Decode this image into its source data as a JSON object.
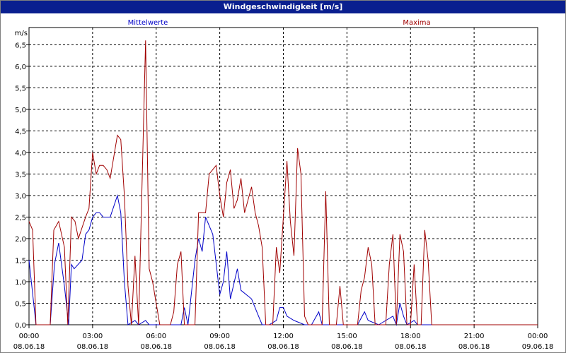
{
  "window": {
    "title": "Windgeschwindigkeit [m/s]"
  },
  "chart_data": {
    "type": "line",
    "title": "Windgeschwindigkeit [m/s]",
    "ylabel": "m/s",
    "ylim": [
      0,
      6.9
    ],
    "grid": true,
    "yticks": [
      "0,0",
      "0,5",
      "1,0",
      "1,5",
      "2,0",
      "2,5",
      "3,0",
      "3,5",
      "4,0",
      "4,5",
      "5,0",
      "5,5",
      "6,0",
      "6,5"
    ],
    "xticks": [
      {
        "time": "00:00",
        "date": "08.06.18"
      },
      {
        "time": "03:00",
        "date": "08.06.18"
      },
      {
        "time": "06:00",
        "date": "08.06.18"
      },
      {
        "time": "09:00",
        "date": "08.06.18"
      },
      {
        "time": "12:00",
        "date": "08.06.18"
      },
      {
        "time": "15:00",
        "date": "08.06.18"
      },
      {
        "time": "18:00",
        "date": "08.06.18"
      },
      {
        "time": "21:00",
        "date": "08.06.18"
      },
      {
        "time": "00:00",
        "date": "09.06.18"
      }
    ],
    "x_unit": "hours since 08.06.18 00:00",
    "series": [
      {
        "name": "Mittelwerte",
        "color": "#0000c8",
        "points": [
          [
            0,
            1.5
          ],
          [
            0.33,
            0
          ],
          [
            1,
            0
          ],
          [
            1.2,
            1.4
          ],
          [
            1.4,
            1.9
          ],
          [
            1.67,
            0.9
          ],
          [
            1.87,
            0
          ],
          [
            2,
            1.4
          ],
          [
            2.13,
            1.3
          ],
          [
            2.5,
            1.5
          ],
          [
            2.67,
            2.1
          ],
          [
            2.83,
            2.2
          ],
          [
            3,
            2.5
          ],
          [
            3.17,
            2.6
          ],
          [
            3.33,
            2.6
          ],
          [
            3.5,
            2.5
          ],
          [
            3.83,
            2.5
          ],
          [
            4.17,
            3.0
          ],
          [
            4.33,
            2.6
          ],
          [
            4.5,
            1.0
          ],
          [
            4.67,
            0
          ],
          [
            5,
            0.1
          ],
          [
            5.17,
            0
          ],
          [
            5.5,
            0.1
          ],
          [
            5.67,
            0
          ],
          [
            7.17,
            0
          ],
          [
            7.33,
            0.4
          ],
          [
            7.5,
            0
          ],
          [
            7.83,
            1.5
          ],
          [
            8,
            2.0
          ],
          [
            8.17,
            1.7
          ],
          [
            8.33,
            2.5
          ],
          [
            8.67,
            2.1
          ],
          [
            9,
            0.7
          ],
          [
            9.17,
            1.0
          ],
          [
            9.33,
            1.7
          ],
          [
            9.5,
            0.6
          ],
          [
            9.83,
            1.3
          ],
          [
            10,
            0.8
          ],
          [
            10.5,
            0.6
          ],
          [
            10.83,
            0.2
          ],
          [
            11,
            0
          ],
          [
            11.33,
            0
          ],
          [
            11.67,
            0.1
          ],
          [
            11.83,
            0.4
          ],
          [
            12,
            0.4
          ],
          [
            12.17,
            0.2
          ],
          [
            12.5,
            0.1
          ],
          [
            13,
            0
          ],
          [
            13.33,
            0
          ],
          [
            13.67,
            0.3
          ],
          [
            13.83,
            0
          ],
          [
            15,
            0
          ],
          [
            15.5,
            0
          ],
          [
            15.83,
            0.3
          ],
          [
            16,
            0.1
          ],
          [
            16.5,
            0
          ],
          [
            17.17,
            0.2
          ],
          [
            17.33,
            0
          ],
          [
            17.5,
            0.5
          ],
          [
            17.67,
            0.2
          ],
          [
            17.83,
            0
          ],
          [
            18.17,
            0.1
          ],
          [
            18.33,
            0
          ],
          [
            24,
            0
          ]
        ]
      },
      {
        "name": "Maxima",
        "color": "#a00000",
        "points": [
          [
            0,
            2.4
          ],
          [
            0.17,
            2.2
          ],
          [
            0.33,
            0
          ],
          [
            1,
            0
          ],
          [
            1.17,
            2.2
          ],
          [
            1.4,
            2.4
          ],
          [
            1.67,
            1.8
          ],
          [
            1.83,
            0
          ],
          [
            2,
            2.5
          ],
          [
            2.17,
            2.4
          ],
          [
            2.33,
            2.0
          ],
          [
            2.67,
            2.5
          ],
          [
            2.83,
            2.7
          ],
          [
            3,
            4.0
          ],
          [
            3.17,
            3.5
          ],
          [
            3.33,
            3.7
          ],
          [
            3.5,
            3.7
          ],
          [
            3.67,
            3.6
          ],
          [
            3.83,
            3.4
          ],
          [
            4.17,
            4.4
          ],
          [
            4.33,
            4.3
          ],
          [
            4.5,
            3.0
          ],
          [
            4.67,
            0.9
          ],
          [
            4.83,
            0
          ],
          [
            5,
            1.6
          ],
          [
            5.17,
            0
          ],
          [
            5.5,
            6.6
          ],
          [
            5.67,
            1.3
          ],
          [
            5.83,
            1.0
          ],
          [
            6,
            0.5
          ],
          [
            6.17,
            0
          ],
          [
            6.67,
            0
          ],
          [
            6.83,
            0.3
          ],
          [
            7,
            1.4
          ],
          [
            7.17,
            1.7
          ],
          [
            7.33,
            0
          ],
          [
            7.83,
            0
          ],
          [
            8,
            2.6
          ],
          [
            8.33,
            2.6
          ],
          [
            8.5,
            3.5
          ],
          [
            8.83,
            3.7
          ],
          [
            9,
            3.0
          ],
          [
            9.17,
            2.5
          ],
          [
            9.33,
            3.3
          ],
          [
            9.5,
            3.6
          ],
          [
            9.67,
            2.7
          ],
          [
            9.83,
            2.9
          ],
          [
            10,
            3.4
          ],
          [
            10.17,
            2.6
          ],
          [
            10.5,
            3.2
          ],
          [
            10.67,
            2.6
          ],
          [
            10.83,
            2.3
          ],
          [
            11,
            1.8
          ],
          [
            11.17,
            0
          ],
          [
            11.5,
            0
          ],
          [
            11.67,
            1.8
          ],
          [
            11.83,
            1.2
          ],
          [
            12,
            2.5
          ],
          [
            12.17,
            3.8
          ],
          [
            12.33,
            2.4
          ],
          [
            12.5,
            1.6
          ],
          [
            12.67,
            4.1
          ],
          [
            12.83,
            3.5
          ],
          [
            13,
            0.2
          ],
          [
            13.17,
            0
          ],
          [
            13.83,
            0
          ],
          [
            14,
            3.1
          ],
          [
            14.17,
            0
          ],
          [
            14.5,
            0
          ],
          [
            14.67,
            0.9
          ],
          [
            14.83,
            0
          ],
          [
            15.5,
            0
          ],
          [
            15.67,
            0.8
          ],
          [
            15.83,
            1.1
          ],
          [
            16,
            1.8
          ],
          [
            16.17,
            1.4
          ],
          [
            16.33,
            0
          ],
          [
            16.83,
            0
          ],
          [
            17,
            1.4
          ],
          [
            17.17,
            2.1
          ],
          [
            17.33,
            0
          ],
          [
            17.5,
            2.1
          ],
          [
            17.67,
            1.7
          ],
          [
            17.83,
            0
          ],
          [
            18,
            0
          ],
          [
            18.17,
            1.4
          ],
          [
            18.33,
            0
          ],
          [
            18.5,
            0
          ],
          [
            18.67,
            2.2
          ],
          [
            18.83,
            1.5
          ],
          [
            19,
            0
          ],
          [
            24,
            0
          ]
        ]
      }
    ]
  }
}
